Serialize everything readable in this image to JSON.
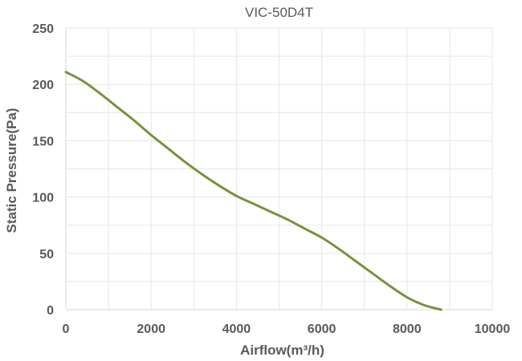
{
  "chart_data": {
    "type": "line",
    "title": "VIC-50D4T",
    "xlabel": "Airflow(m³/h)",
    "ylabel": "Static Pressure(Pa)",
    "xlim": [
      0,
      10000
    ],
    "ylim": [
      0,
      250
    ],
    "x_ticks": [
      "0",
      "2000",
      "4000",
      "6000",
      "8000",
      "10000"
    ],
    "y_ticks": [
      "0",
      "50",
      "100",
      "150",
      "200",
      "250"
    ],
    "grid": true,
    "legend": "none",
    "series": [
      {
        "color": "#77933c",
        "x": [
          0,
          400,
          800,
          1200,
          1600,
          2000,
          2400,
          2800,
          3200,
          3600,
          4000,
          4400,
          4800,
          5200,
          5600,
          6000,
          6400,
          6800,
          7200,
          7600,
          8000,
          8400,
          8800
        ],
        "y": [
          211,
          203,
          192,
          180,
          168,
          155,
          143,
          131,
          120,
          110,
          101,
          94,
          87,
          80,
          72,
          64,
          54,
          43,
          32,
          21,
          11,
          4,
          0
        ]
      }
    ]
  }
}
